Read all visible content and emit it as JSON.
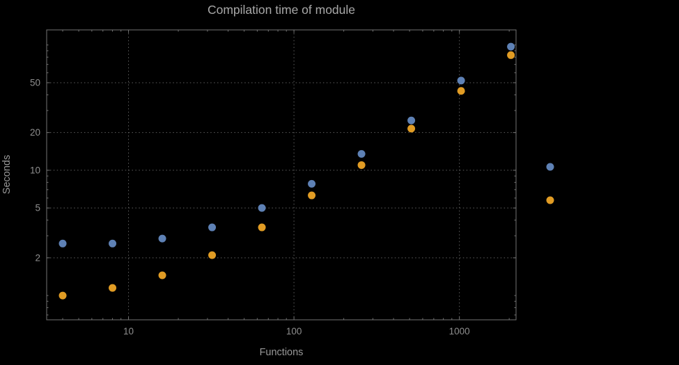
{
  "chart_data": {
    "type": "scatter",
    "title": "Compilation time of module",
    "xlabel": "Functions",
    "ylabel": "Seconds",
    "x_scale": "log",
    "y_scale": "log",
    "x_range": [
      3.2,
      2200
    ],
    "y_range": [
      0.64,
      132
    ],
    "x_ticks": [
      10,
      100,
      1000
    ],
    "y_ticks": [
      2,
      5,
      10,
      20,
      50
    ],
    "grid": "dotted",
    "x": [
      4,
      8,
      16,
      32,
      64,
      128,
      256,
      512,
      1024,
      2048
    ],
    "series": [
      {
        "name": "series-1",
        "color": "#5e81b5",
        "values": [
          2.6,
          2.6,
          2.85,
          3.5,
          5.0,
          7.8,
          13.5,
          25,
          52,
          97
        ]
      },
      {
        "name": "series-2",
        "color": "#e19c24",
        "values": [
          1.0,
          1.15,
          1.45,
          2.1,
          3.5,
          6.3,
          11,
          21.5,
          43,
          83
        ]
      }
    ],
    "legend": {
      "position": "right-outside",
      "labels_visible": false,
      "markers": [
        "series-1",
        "series-2"
      ]
    }
  },
  "colors": {
    "background": "#000000",
    "frame": "#747474",
    "grid": "#606060",
    "title": "#a8a8a8",
    "axis_label": "#989898",
    "tick_label": "#8f8f8f"
  }
}
